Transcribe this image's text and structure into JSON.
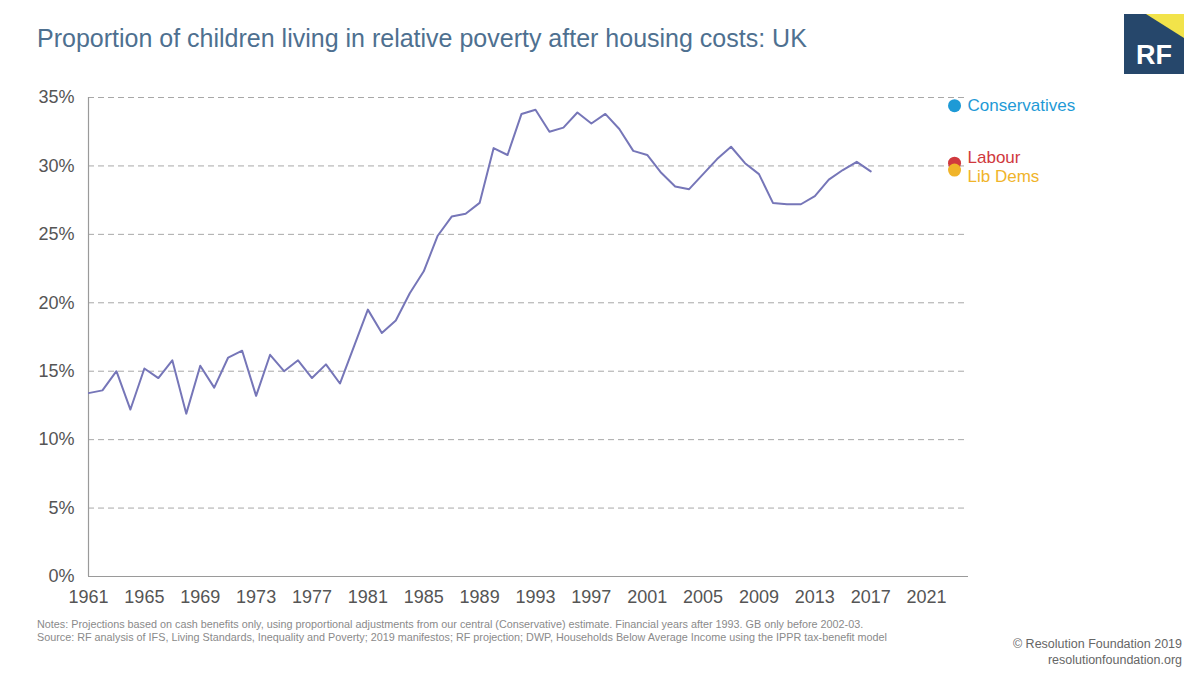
{
  "chart_data": {
    "type": "line",
    "title": "Proportion of children living in relative poverty after housing costs: UK",
    "x": [
      1961,
      1962,
      1963,
      1964,
      1965,
      1966,
      1967,
      1968,
      1969,
      1970,
      1971,
      1972,
      1973,
      1974,
      1975,
      1976,
      1977,
      1978,
      1979,
      1980,
      1981,
      1982,
      1983,
      1984,
      1985,
      1986,
      1987,
      1988,
      1989,
      1990,
      1991,
      1992,
      1993,
      1994,
      1995,
      1996,
      1997,
      1998,
      1999,
      2000,
      2001,
      2002,
      2003,
      2004,
      2005,
      2006,
      2007,
      2008,
      2009,
      2010,
      2011,
      2012,
      2013,
      2014,
      2015,
      2016,
      2017
    ],
    "series": [
      {
        "type": "line",
        "color": "#7676b8",
        "values": [
          13.4,
          13.6,
          15.0,
          12.2,
          15.2,
          14.5,
          15.8,
          11.9,
          15.4,
          13.8,
          16.0,
          16.5,
          13.2,
          16.2,
          15.0,
          15.8,
          14.5,
          15.5,
          14.1,
          16.8,
          19.5,
          17.8,
          18.7,
          20.7,
          22.3,
          24.9,
          26.3,
          26.5,
          27.3,
          31.3,
          30.8,
          33.8,
          34.1,
          32.5,
          32.8,
          33.9,
          33.1,
          33.8,
          32.7,
          31.1,
          30.8,
          29.5,
          28.5,
          28.3,
          29.4,
          30.5,
          31.4,
          30.2,
          29.4,
          27.3,
          27.2,
          27.2,
          27.8,
          29.0,
          29.7,
          30.3,
          29.6
        ]
      },
      {
        "type": "scatter",
        "name": "Conservatives",
        "color": "#1e9ad6",
        "x": [
          2023
        ],
        "values": [
          34.4
        ]
      },
      {
        "type": "scatter",
        "name": "Labour",
        "color": "#d0393e",
        "x": [
          2023
        ],
        "values": [
          30.2
        ]
      },
      {
        "type": "scatter",
        "name": "Lib Dems",
        "color": "#f0b429",
        "x": [
          2023
        ],
        "values": [
          29.7
        ]
      }
    ],
    "xlim": [
      1961,
      2024
    ],
    "xticks": [
      1961,
      1965,
      1969,
      1973,
      1977,
      1981,
      1985,
      1989,
      1993,
      1997,
      2001,
      2005,
      2009,
      2013,
      2017,
      2021
    ],
    "ylim": [
      0,
      35
    ],
    "yticks": [
      {
        "value": 0,
        "label": "0%"
      },
      {
        "value": 5,
        "label": "5%"
      },
      {
        "value": 10,
        "label": "10%"
      },
      {
        "value": 15,
        "label": "15%"
      },
      {
        "value": 20,
        "label": "20%"
      },
      {
        "value": 25,
        "label": "25%"
      },
      {
        "value": 30,
        "label": "30%"
      },
      {
        "value": 35,
        "label": "35%"
      }
    ],
    "grid": true,
    "logo": "RF",
    "notes": "Notes: Projections based on cash benefits only, using proportional adjustments from our central (Conservative) estimate. Financial years after 1993. GB only before 2002-03.",
    "source": "Source: RF analysis of IFS, Living Standards, Inequality and Poverty; 2019 manifestos; RF projection; DWP, Households Below Average Income using the IPPR tax-benefit model",
    "copyright": "© Resolution Foundation 2019",
    "website": "resolutionfoundation.org"
  }
}
